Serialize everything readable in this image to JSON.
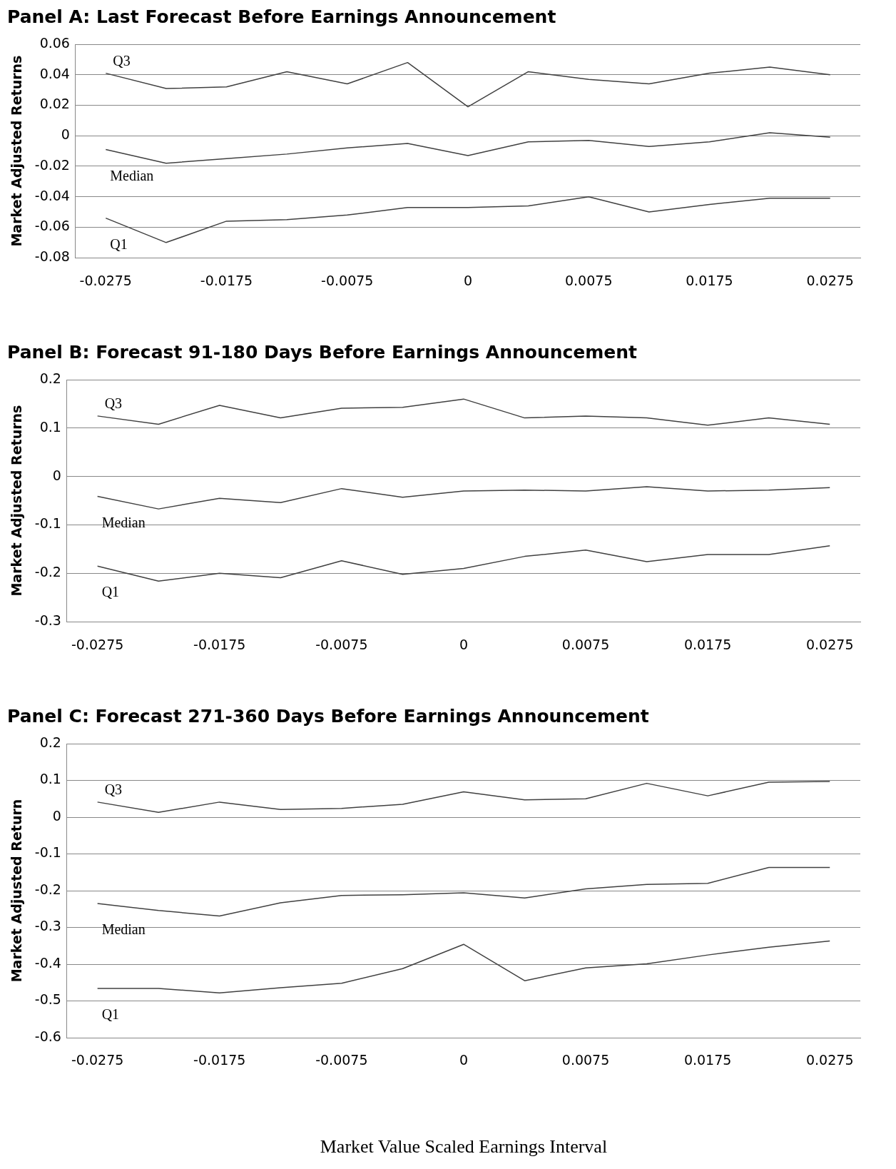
{
  "chart_data": [
    {
      "type": "line",
      "title": "Panel A: Last Forecast Before Earnings Announcement",
      "ylabel": "Market Adjusted Returns",
      "categories": [
        "-0.0275",
        null,
        "-0.0175",
        null,
        "-0.0075",
        null,
        "0",
        null,
        "0.0075",
        null,
        "0.0175",
        null,
        "0.0275"
      ],
      "series": [
        {
          "name": "Q3",
          "color": "#404040",
          "values": [
            0.041,
            0.031,
            0.032,
            0.042,
            0.034,
            0.048,
            0.019,
            0.042,
            0.037,
            0.034,
            0.041,
            0.045,
            0.04
          ]
        },
        {
          "name": "Median",
          "color": "#404040",
          "values": [
            -0.009,
            -0.018,
            -0.015,
            -0.012,
            -0.008,
            -0.005,
            -0.013,
            -0.004,
            -0.003,
            -0.007,
            -0.004,
            0.002,
            -0.001
          ]
        },
        {
          "name": "Q1",
          "color": "#404040",
          "values": [
            -0.054,
            -0.07,
            -0.056,
            -0.055,
            -0.052,
            -0.047,
            -0.047,
            -0.046,
            -0.04,
            -0.05,
            -0.045,
            -0.041,
            -0.041
          ]
        }
      ],
      "ylim": [
        -0.08,
        0.06
      ],
      "yticks": [
        -0.08,
        -0.06,
        -0.04,
        -0.02,
        0,
        0.02,
        0.04,
        0.06
      ],
      "grid": "y",
      "legend": false,
      "marker": "none",
      "line_style": "solid"
    },
    {
      "type": "line",
      "title": "Panel B: Forecast 91-180 Days Before Earnings Announcement",
      "ylabel": "Market Adjusted Returns",
      "categories": [
        "-0.0275",
        null,
        "-0.0175",
        null,
        "-0.0075",
        null,
        "0",
        null,
        "0.0075",
        null,
        "0.0175",
        null,
        "0.0275"
      ],
      "series": [
        {
          "name": "Q3",
          "color": "#404040",
          "values": [
            0.125,
            0.108,
            0.147,
            0.121,
            0.141,
            0.143,
            0.16,
            0.121,
            0.125,
            0.121,
            0.106,
            0.121,
            0.108
          ]
        },
        {
          "name": "Median",
          "color": "#404040",
          "values": [
            -0.041,
            -0.067,
            -0.045,
            -0.054,
            -0.025,
            -0.043,
            -0.03,
            -0.028,
            -0.03,
            -0.021,
            -0.03,
            -0.028,
            -0.023
          ]
        },
        {
          "name": "Q1",
          "color": "#404040",
          "values": [
            -0.185,
            -0.216,
            -0.2,
            -0.209,
            -0.174,
            -0.202,
            -0.19,
            -0.165,
            -0.152,
            -0.176,
            -0.161,
            -0.161,
            -0.143
          ]
        }
      ],
      "ylim": [
        -0.3,
        0.2
      ],
      "yticks": [
        -0.3,
        -0.2,
        -0.1,
        0,
        0.1,
        0.2
      ],
      "grid": "y",
      "legend": false,
      "marker": "none",
      "line_style": "solid"
    },
    {
      "type": "line",
      "title": "Panel C: Forecast 271-360 Days Before Earnings Announcement",
      "ylabel": "Market Adjusted Return",
      "xlabel": "Market Value Scaled Earnings Interval",
      "categories": [
        "-0.0275",
        null,
        "-0.0175",
        null,
        "-0.0075",
        null,
        "0",
        null,
        "0.0075",
        null,
        "0.0175",
        null,
        "0.0275"
      ],
      "series": [
        {
          "name": "Q3",
          "color": "#404040",
          "values": [
            0.041,
            0.013,
            0.041,
            0.021,
            0.024,
            0.035,
            0.069,
            0.047,
            0.05,
            0.092,
            0.058,
            0.095,
            0.097
          ]
        },
        {
          "name": "Median",
          "color": "#404040",
          "values": [
            -0.235,
            -0.254,
            -0.269,
            -0.233,
            -0.213,
            -0.211,
            -0.206,
            -0.22,
            -0.195,
            -0.183,
            -0.18,
            -0.137,
            -0.137
          ]
        },
        {
          "name": "Q1",
          "color": "#404040",
          "values": [
            -0.466,
            -0.466,
            -0.478,
            -0.464,
            -0.452,
            -0.412,
            -0.346,
            -0.445,
            -0.41,
            -0.399,
            -0.375,
            -0.354,
            -0.337
          ]
        }
      ],
      "ylim": [
        -0.6,
        0.2
      ],
      "yticks": [
        -0.6,
        -0.5,
        -0.4,
        -0.3,
        -0.2,
        -0.1,
        0,
        0.1,
        0.2
      ],
      "grid": "y",
      "legend": false,
      "marker": "none",
      "line_style": "solid"
    }
  ]
}
